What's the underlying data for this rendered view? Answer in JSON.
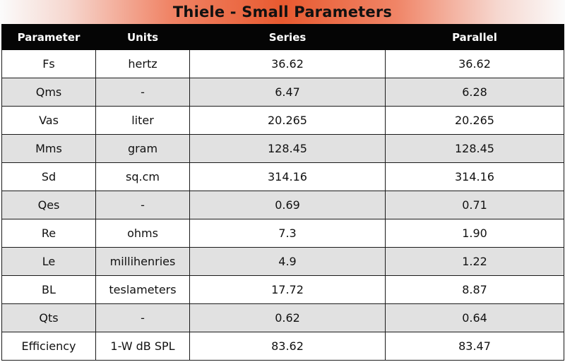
{
  "title": "Thiele - Small Parameters",
  "colors": {
    "header_background": "#050505",
    "header_text": "#ffffff",
    "shaded_row": "#e1e1e1",
    "title_accent": "#e85a30"
  },
  "table": {
    "headers": [
      "Parameter",
      "Units",
      "Series",
      "Parallel"
    ],
    "rows": [
      {
        "parameter": "Fs",
        "units": "hertz",
        "series": "36.62",
        "parallel": "36.62"
      },
      {
        "parameter": "Qms",
        "units": "-",
        "series": "6.47",
        "parallel": "6.28"
      },
      {
        "parameter": "Vas",
        "units": "liter",
        "series": "20.265",
        "parallel": "20.265"
      },
      {
        "parameter": "Mms",
        "units": "gram",
        "series": "128.45",
        "parallel": "128.45"
      },
      {
        "parameter": "Sd",
        "units": "sq.cm",
        "series": "314.16",
        "parallel": "314.16"
      },
      {
        "parameter": "Qes",
        "units": "-",
        "series": "0.69",
        "parallel": "0.71"
      },
      {
        "parameter": "Re",
        "units": "ohms",
        "series": "7.3",
        "parallel": "1.90"
      },
      {
        "parameter": "Le",
        "units": "millihenries",
        "series": "4.9",
        "parallel": "1.22"
      },
      {
        "parameter": "BL",
        "units": "teslameters",
        "series": "17.72",
        "parallel": "8.87"
      },
      {
        "parameter": "Qts",
        "units": "-",
        "series": "0.62",
        "parallel": "0.64"
      },
      {
        "parameter": "Efficiency",
        "units": "1-W dB SPL",
        "series": "83.62",
        "parallel": "83.47"
      }
    ]
  }
}
